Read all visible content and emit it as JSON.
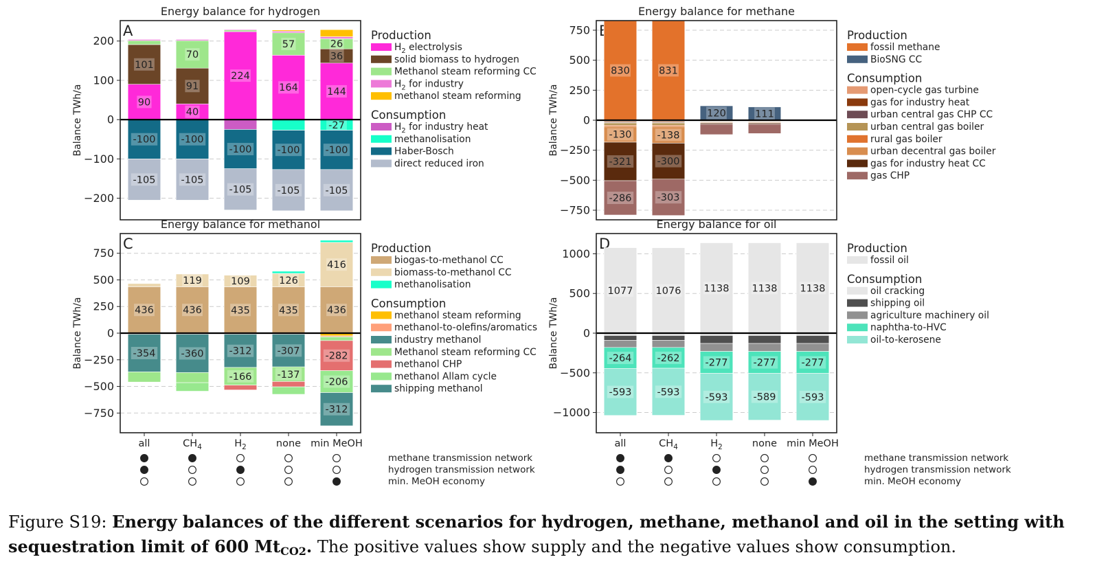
{
  "caption": {
    "label": "Figure S19:",
    "bold_main": "Energy balances of the different scenarios for hydrogen, methane, methanol and oil in the setting with sequestration limit of 600 Mt",
    "bold_sub": "CO2",
    "bold_end": ".",
    "rest": " The positive values show supply and the negative values show consumption."
  },
  "scenarios": {
    "names": [
      "all",
      "CH4",
      "H2",
      "none",
      "min MeOH"
    ],
    "rows": [
      {
        "label": "methane transmission network",
        "filled": [
          true,
          true,
          false,
          false,
          false
        ]
      },
      {
        "label": "hydrogen transmission network",
        "filled": [
          true,
          false,
          true,
          false,
          false
        ]
      },
      {
        "label": "min. MeOH economy",
        "filled": [
          false,
          false,
          false,
          false,
          true
        ]
      }
    ]
  },
  "chart_data": [
    {
      "type": "bar",
      "panel": "A",
      "title": "Energy balance for hydrogen",
      "ylabel": "Balance TWh/a",
      "ylim": [
        -255,
        252
      ],
      "yticks": [
        200,
        100,
        0,
        -100,
        -200
      ],
      "ytick_labels": [
        "200",
        "100",
        "0",
        "−100",
        "−200"
      ],
      "categories": [
        "all",
        "CH4",
        "H2",
        "none",
        "min MeOH"
      ],
      "legend_headers": [
        "Production",
        "Consumption"
      ],
      "series": [
        {
          "name": "H2 electrolysis",
          "color": "#ff29d9",
          "group": "Production",
          "values": [
            90,
            40,
            224,
            164,
            144
          ],
          "labels": [
            "90",
            "40",
            "224",
            "164",
            "144"
          ]
        },
        {
          "name": "solid biomass to hydrogen",
          "color": "#6b4527",
          "group": "Production",
          "values": [
            101,
            91,
            0,
            0,
            36
          ],
          "labels": [
            "101",
            "91",
            "",
            "",
            "36"
          ]
        },
        {
          "name": "Methanol steam reforming CC",
          "color": "#9ee68b",
          "group": "Production",
          "values": [
            10,
            70,
            4,
            57,
            26
          ],
          "labels": [
            "",
            "70",
            "",
            "57",
            "26"
          ]
        },
        {
          "name": "H2 for industry",
          "color": "#ed7ad8",
          "group": "Production",
          "values": [
            3,
            3,
            2,
            4,
            5
          ],
          "labels": [
            "",
            "",
            "",
            "",
            ""
          ]
        },
        {
          "name": "methanol steam reforming",
          "color": "#ffbf00",
          "group": "Production",
          "values": [
            0,
            0,
            0,
            3,
            18
          ],
          "labels": [
            "",
            "",
            "",
            "",
            ""
          ]
        },
        {
          "name": "H2 for industry heat",
          "color": "#cc5cc4",
          "group": "Consumption",
          "values": [
            0,
            0,
            -25,
            0,
            0
          ],
          "labels": [
            "",
            "",
            "",
            "",
            ""
          ]
        },
        {
          "name": "methanolisation",
          "color": "#17ffc9",
          "group": "Consumption",
          "values": [
            0,
            0,
            0,
            -27,
            -27
          ],
          "labels": [
            "",
            "",
            "",
            "",
            "-27"
          ]
        },
        {
          "name": "Haber-Bosch",
          "color": "#136b87",
          "group": "Consumption",
          "values": [
            -100,
            -100,
            -100,
            -100,
            -100
          ],
          "labels": [
            "-100",
            "-100",
            "-100",
            "-100",
            "-100"
          ]
        },
        {
          "name": "direct reduced iron",
          "color": "#b3bccc",
          "group": "Consumption",
          "values": [
            -105,
            -105,
            -105,
            -105,
            -105
          ],
          "labels": [
            "-105",
            "-105",
            "-105",
            "-105",
            "-105"
          ]
        }
      ]
    },
    {
      "type": "bar",
      "panel": "B",
      "title": "Energy balance for methane",
      "ylabel": "Balance TWh/a",
      "ylim": [
        -830,
        830
      ],
      "yticks": [
        750,
        500,
        250,
        0,
        -250,
        -500,
        -750
      ],
      "ytick_labels": [
        "750",
        "500",
        "250",
        "0",
        "−250",
        "−500",
        "−750"
      ],
      "categories": [
        "all",
        "CH4",
        "H2",
        "none",
        "min MeOH"
      ],
      "legend_headers": [
        "Production",
        "Consumption"
      ],
      "series": [
        {
          "name": "fossil methane",
          "color": "#e3722b",
          "group": "Production",
          "values": [
            830,
            831,
            0,
            0,
            0
          ],
          "labels": [
            "830",
            "831",
            "",
            "",
            ""
          ]
        },
        {
          "name": "BioSNG CC",
          "color": "#46627f",
          "group": "Production",
          "values": [
            0,
            0,
            120,
            111,
            0
          ],
          "labels": [
            "",
            "",
            "120",
            "111",
            ""
          ]
        },
        {
          "name": "open-cycle gas turbine",
          "color": "#e59a73",
          "group": "Consumption",
          "values": [
            -10,
            -10,
            -5,
            -5,
            0
          ],
          "labels": [
            "",
            "",
            "",
            "",
            ""
          ]
        },
        {
          "name": "gas for industry heat",
          "color": "#8a3a0d",
          "group": "Consumption",
          "values": [
            -8,
            -8,
            -4,
            -4,
            0
          ],
          "labels": [
            "",
            "",
            "",
            "",
            ""
          ]
        },
        {
          "name": "urban central gas CHP CC",
          "color": "#6e4c55",
          "group": "Consumption",
          "values": [
            -5,
            -5,
            0,
            0,
            0
          ],
          "labels": [
            "",
            "",
            "",
            "",
            ""
          ]
        },
        {
          "name": "urban central gas boiler",
          "color": "#b59456",
          "group": "Consumption",
          "values": [
            -20,
            -20,
            -5,
            -5,
            0
          ],
          "labels": [
            "",
            "",
            "",
            "",
            ""
          ]
        },
        {
          "name": "rural gas boiler",
          "color": "#e0732f",
          "group": "Consumption",
          "values": [
            -10,
            -10,
            -4,
            -4,
            0
          ],
          "labels": [
            "",
            "",
            "",
            "",
            ""
          ]
        },
        {
          "name": "urban decentral gas boiler",
          "color": "#d88d4f",
          "group": "Consumption",
          "values": [
            -130,
            -138,
            -6,
            -6,
            0
          ],
          "labels": [
            "-130",
            "-138",
            "",
            "",
            ""
          ]
        },
        {
          "name": "gas for industry heat CC",
          "color": "#5a2a0d",
          "group": "Consumption",
          "values": [
            -321,
            -300,
            -10,
            -10,
            0
          ],
          "labels": [
            "-321",
            "-300",
            "",
            "",
            ""
          ]
        },
        {
          "name": "gas CHP",
          "color": "#9e6965",
          "group": "Consumption",
          "values": [
            -286,
            -303,
            -86,
            -77,
            0
          ],
          "labels": [
            "-286",
            "-303",
            "",
            "",
            ""
          ]
        }
      ]
    },
    {
      "type": "bar",
      "panel": "C",
      "title": "Energy balance for methanol",
      "ylabel": "Balance TWh/a",
      "ylim": [
        -935,
        935
      ],
      "yticks": [
        750,
        500,
        250,
        0,
        -250,
        -500,
        -750
      ],
      "ytick_labels": [
        "750",
        "500",
        "250",
        "0",
        "−250",
        "−500",
        "−750"
      ],
      "categories": [
        "all",
        "CH4",
        "H2",
        "none",
        "min MeOH"
      ],
      "legend_headers": [
        "Production",
        "Consumption"
      ],
      "series": [
        {
          "name": "biogas-to-methanol CC",
          "color": "#cfa876",
          "group": "Production",
          "values": [
            436,
            436,
            435,
            435,
            436
          ],
          "labels": [
            "436",
            "436",
            "435",
            "435",
            "436"
          ]
        },
        {
          "name": "biomass-to-methanol CC",
          "color": "#ecd8b0",
          "group": "Production",
          "values": [
            30,
            119,
            109,
            126,
            416
          ],
          "labels": [
            "",
            "119",
            "109",
            "126",
            "416"
          ]
        },
        {
          "name": "methanolisation",
          "color": "#17ffc9",
          "group": "Production",
          "values": [
            0,
            0,
            0,
            20,
            20
          ],
          "labels": [
            "",
            "",
            "",
            "",
            ""
          ]
        },
        {
          "name": "methanol steam reforming",
          "color": "#ffbf00",
          "group": "Consumption",
          "values": [
            0,
            0,
            0,
            0,
            -25
          ],
          "labels": [
            "",
            "",
            "",
            "",
            ""
          ]
        },
        {
          "name": "methanol-to-olefins/aromatics",
          "color": "#ffa07a",
          "group": "Consumption",
          "values": [
            -10,
            -10,
            -10,
            -10,
            -10
          ],
          "labels": [
            "",
            "",
            "",
            "",
            ""
          ]
        },
        {
          "name": "industry methanol",
          "color": "#468b8b",
          "group": "Consumption",
          "values": [
            -354,
            -360,
            -312,
            -307,
            0
          ],
          "labels": [
            "-354",
            "-360",
            "-312",
            "-307",
            ""
          ]
        },
        {
          "name": "Methanol steam reforming CC",
          "color": "#9ee68b",
          "group": "Consumption",
          "values": [
            -95,
            -95,
            -166,
            -137,
            -35
          ],
          "labels": [
            "",
            "",
            "-166",
            "-137",
            ""
          ]
        },
        {
          "name": "methanol CHP",
          "color": "#e46f6f",
          "group": "Consumption",
          "values": [
            0,
            0,
            -45,
            -50,
            -282
          ],
          "labels": [
            "",
            "",
            "",
            "",
            "-282"
          ]
        },
        {
          "name": "methanol Allam cycle",
          "color": "#98e88e",
          "group": "Consumption",
          "values": [
            0,
            -80,
            0,
            -70,
            -206
          ],
          "labels": [
            "",
            "",
            "",
            "",
            "-206"
          ]
        },
        {
          "name": "shipping methanol",
          "color": "#468b8b",
          "group": "Consumption",
          "values": [
            0,
            0,
            0,
            0,
            -312
          ],
          "labels": [
            "",
            "",
            "",
            "",
            "-312"
          ]
        }
      ]
    },
    {
      "type": "bar",
      "panel": "D",
      "title": "Energy balance for oil",
      "ylabel": "Balance TWh/a",
      "ylim": [
        -1255,
        1255
      ],
      "yticks": [
        1000,
        500,
        0,
        -500,
        -1000
      ],
      "ytick_labels": [
        "1000",
        "500",
        "0",
        "−500",
        "−1000"
      ],
      "categories": [
        "all",
        "CH4",
        "H2",
        "none",
        "min MeOH"
      ],
      "legend_headers": [
        "Production",
        "Consumption"
      ],
      "series": [
        {
          "name": "fossil oil",
          "color": "#e6e6e6",
          "group": "Production",
          "values": [
            1077,
            1076,
            1138,
            1138,
            1138
          ],
          "labels": [
            "1077",
            "1076",
            "1138",
            "1138",
            "1138"
          ]
        },
        {
          "name": "oil cracking",
          "color": "#e6e6e6",
          "group": "Consumption",
          "values": [
            -30,
            -30,
            -30,
            -30,
            -30
          ],
          "labels": [
            "",
            "",
            "",
            "",
            ""
          ]
        },
        {
          "name": "shipping oil",
          "color": "#4f4f4f",
          "group": "Consumption",
          "values": [
            -60,
            -60,
            -100,
            -100,
            -100
          ],
          "labels": [
            "",
            "",
            "",
            "",
            ""
          ]
        },
        {
          "name": "agriculture machinery oil",
          "color": "#919191",
          "group": "Consumption",
          "values": [
            -90,
            -90,
            -100,
            -100,
            -100
          ],
          "labels": [
            "",
            "",
            "",
            "",
            ""
          ]
        },
        {
          "name": "naphtha-to-HVC",
          "color": "#4de3ba",
          "group": "Consumption",
          "values": [
            -264,
            -262,
            -277,
            -277,
            -277
          ],
          "labels": [
            "-264",
            "-262",
            "-277",
            "-277",
            "-277"
          ]
        },
        {
          "name": "oil-to-kerosene",
          "color": "#93e6d5",
          "group": "Consumption",
          "values": [
            -593,
            -593,
            -593,
            -589,
            -593
          ],
          "labels": [
            "-593",
            "-593",
            "-593",
            "-589",
            "-593"
          ]
        }
      ]
    }
  ]
}
